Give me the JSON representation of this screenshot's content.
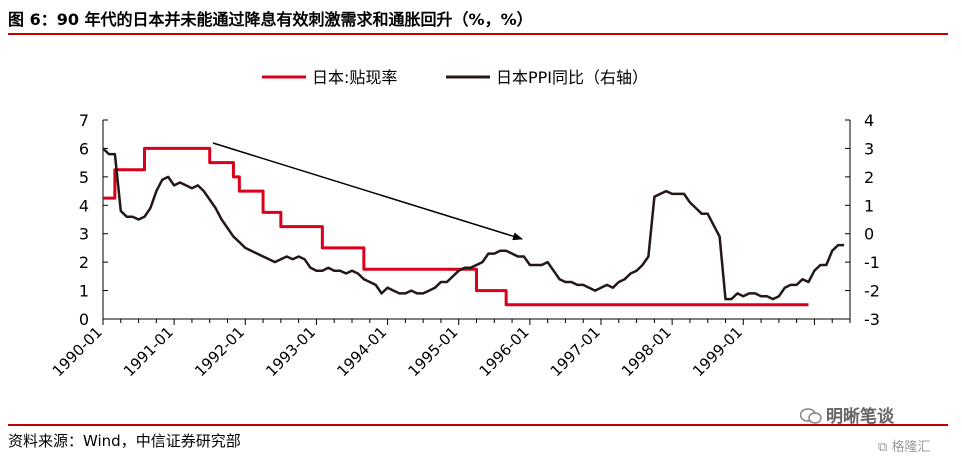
{
  "header": {
    "title": "图 6：90 年代的日本并未能通过降息有效刺激需求和通胀回升（%，%）"
  },
  "footer": {
    "source": "资料来源：Wind，中信证券研究部"
  },
  "watermark": {
    "text": "明晰笔谈",
    "logo_text": "格隆汇"
  },
  "chart_data": {
    "type": "line",
    "x_tick_labels": [
      "1990-01",
      "1991-01",
      "1992-01",
      "1993-01",
      "1994-01",
      "1995-01",
      "1996-01",
      "1997-01",
      "1998-01",
      "1999-01"
    ],
    "y_left": {
      "ticks": [
        0,
        1,
        2,
        3,
        4,
        5,
        6,
        7
      ],
      "range": [
        0,
        7
      ]
    },
    "y_right": {
      "ticks": [
        -3,
        -2,
        -1,
        0,
        1,
        2,
        3,
        4
      ],
      "range": [
        -3,
        4
      ]
    },
    "legend_position": "top-center",
    "annotation": "arrow",
    "colors": {
      "discount": "#d9001b",
      "ppi": "#231815",
      "accent": "#c00000"
    },
    "series": [
      {
        "name": "日本:贴现率",
        "axis": "left",
        "step": true,
        "points": [
          [
            "1990-01",
            4.25
          ],
          [
            "1990-03",
            5.25
          ],
          [
            "1990-08",
            6.0
          ],
          [
            "1991-07",
            5.5
          ],
          [
            "1991-11",
            5.0
          ],
          [
            "1991-12",
            4.5
          ],
          [
            "1992-04",
            3.75
          ],
          [
            "1992-07",
            3.25
          ],
          [
            "1993-02",
            2.5
          ],
          [
            "1993-09",
            1.75
          ],
          [
            "1995-04",
            1.0
          ],
          [
            "1995-09",
            0.5
          ],
          [
            "1999-12",
            0.5
          ]
        ]
      },
      {
        "name": "日本PPI同比（右轴）",
        "axis": "right",
        "points": [
          [
            "1990-01",
            3.0
          ],
          [
            "1990-02",
            2.8
          ],
          [
            "1990-03",
            2.8
          ],
          [
            "1990-04",
            0.8
          ],
          [
            "1990-05",
            0.6
          ],
          [
            "1990-06",
            0.6
          ],
          [
            "1990-07",
            0.5
          ],
          [
            "1990-08",
            0.6
          ],
          [
            "1990-09",
            0.9
          ],
          [
            "1990-10",
            1.5
          ],
          [
            "1990-11",
            1.9
          ],
          [
            "1990-12",
            2.0
          ],
          [
            "1991-01",
            1.7
          ],
          [
            "1991-02",
            1.8
          ],
          [
            "1991-03",
            1.7
          ],
          [
            "1991-04",
            1.6
          ],
          [
            "1991-05",
            1.7
          ],
          [
            "1991-06",
            1.5
          ],
          [
            "1991-07",
            1.2
          ],
          [
            "1991-08",
            0.9
          ],
          [
            "1991-09",
            0.5
          ],
          [
            "1991-10",
            0.2
          ],
          [
            "1991-11",
            -0.1
          ],
          [
            "1991-12",
            -0.3
          ],
          [
            "1992-01",
            -0.5
          ],
          [
            "1992-02",
            -0.6
          ],
          [
            "1992-03",
            -0.7
          ],
          [
            "1992-04",
            -0.8
          ],
          [
            "1992-05",
            -0.9
          ],
          [
            "1992-06",
            -1.0
          ],
          [
            "1992-07",
            -0.9
          ],
          [
            "1992-08",
            -0.8
          ],
          [
            "1992-09",
            -0.9
          ],
          [
            "1992-10",
            -0.8
          ],
          [
            "1992-11",
            -0.9
          ],
          [
            "1992-12",
            -1.2
          ],
          [
            "1993-01",
            -1.3
          ],
          [
            "1993-02",
            -1.3
          ],
          [
            "1993-03",
            -1.2
          ],
          [
            "1993-04",
            -1.3
          ],
          [
            "1993-05",
            -1.3
          ],
          [
            "1993-06",
            -1.4
          ],
          [
            "1993-07",
            -1.3
          ],
          [
            "1993-08",
            -1.4
          ],
          [
            "1993-09",
            -1.6
          ],
          [
            "1993-10",
            -1.7
          ],
          [
            "1993-11",
            -1.8
          ],
          [
            "1993-12",
            -2.1
          ],
          [
            "1994-01",
            -1.9
          ],
          [
            "1994-02",
            -2.0
          ],
          [
            "1994-03",
            -2.1
          ],
          [
            "1994-04",
            -2.1
          ],
          [
            "1994-05",
            -2.0
          ],
          [
            "1994-06",
            -2.1
          ],
          [
            "1994-07",
            -2.1
          ],
          [
            "1994-08",
            -2.0
          ],
          [
            "1994-09",
            -1.9
          ],
          [
            "1994-10",
            -1.7
          ],
          [
            "1994-11",
            -1.7
          ],
          [
            "1994-12",
            -1.5
          ],
          [
            "1995-01",
            -1.3
          ],
          [
            "1995-02",
            -1.2
          ],
          [
            "1995-03",
            -1.2
          ],
          [
            "1995-04",
            -1.1
          ],
          [
            "1995-05",
            -1.0
          ],
          [
            "1995-06",
            -0.7
          ],
          [
            "1995-07",
            -0.7
          ],
          [
            "1995-08",
            -0.6
          ],
          [
            "1995-09",
            -0.6
          ],
          [
            "1995-10",
            -0.7
          ],
          [
            "1995-11",
            -0.8
          ],
          [
            "1995-12",
            -0.8
          ],
          [
            "1996-01",
            -1.1
          ],
          [
            "1996-02",
            -1.1
          ],
          [
            "1996-03",
            -1.1
          ],
          [
            "1996-04",
            -1.0
          ],
          [
            "1996-05",
            -1.3
          ],
          [
            "1996-06",
            -1.6
          ],
          [
            "1996-07",
            -1.7
          ],
          [
            "1996-08",
            -1.7
          ],
          [
            "1996-09",
            -1.8
          ],
          [
            "1996-10",
            -1.8
          ],
          [
            "1996-11",
            -1.9
          ],
          [
            "1996-12",
            -2.0
          ],
          [
            "1997-01",
            -1.9
          ],
          [
            "1997-02",
            -1.8
          ],
          [
            "1997-03",
            -1.9
          ],
          [
            "1997-04",
            -1.7
          ],
          [
            "1997-05",
            -1.6
          ],
          [
            "1997-06",
            -1.4
          ],
          [
            "1997-07",
            -1.3
          ],
          [
            "1997-08",
            -1.1
          ],
          [
            "1997-09",
            -0.8
          ],
          [
            "1997-10",
            1.3
          ],
          [
            "1997-11",
            1.4
          ],
          [
            "1997-12",
            1.5
          ],
          [
            "1998-01",
            1.4
          ],
          [
            "1998-02",
            1.4
          ],
          [
            "1998-03",
            1.4
          ],
          [
            "1998-04",
            1.1
          ],
          [
            "1998-05",
            0.9
          ],
          [
            "1998-06",
            0.7
          ],
          [
            "1998-07",
            0.7
          ],
          [
            "1998-08",
            0.3
          ],
          [
            "1998-09",
            -0.1
          ],
          [
            "1998-10",
            -2.3
          ],
          [
            "1998-11",
            -2.3
          ],
          [
            "1998-12",
            -2.1
          ],
          [
            "1999-01",
            -2.2
          ],
          [
            "1999-02",
            -2.1
          ],
          [
            "1999-03",
            -2.1
          ],
          [
            "1999-04",
            -2.2
          ],
          [
            "1999-05",
            -2.2
          ],
          [
            "1999-06",
            -2.3
          ],
          [
            "1999-07",
            -2.2
          ],
          [
            "1999-08",
            -1.9
          ],
          [
            "1999-09",
            -1.8
          ],
          [
            "1999-10",
            -1.8
          ],
          [
            "1999-11",
            -1.6
          ],
          [
            "1999-12",
            -1.7
          ],
          [
            "2000-01",
            -1.3
          ],
          [
            "2000-02",
            -1.1
          ],
          [
            "2000-03",
            -1.1
          ],
          [
            "2000-04",
            -0.6
          ],
          [
            "2000-05",
            -0.4
          ],
          [
            "2000-06",
            -0.4
          ]
        ]
      }
    ]
  }
}
